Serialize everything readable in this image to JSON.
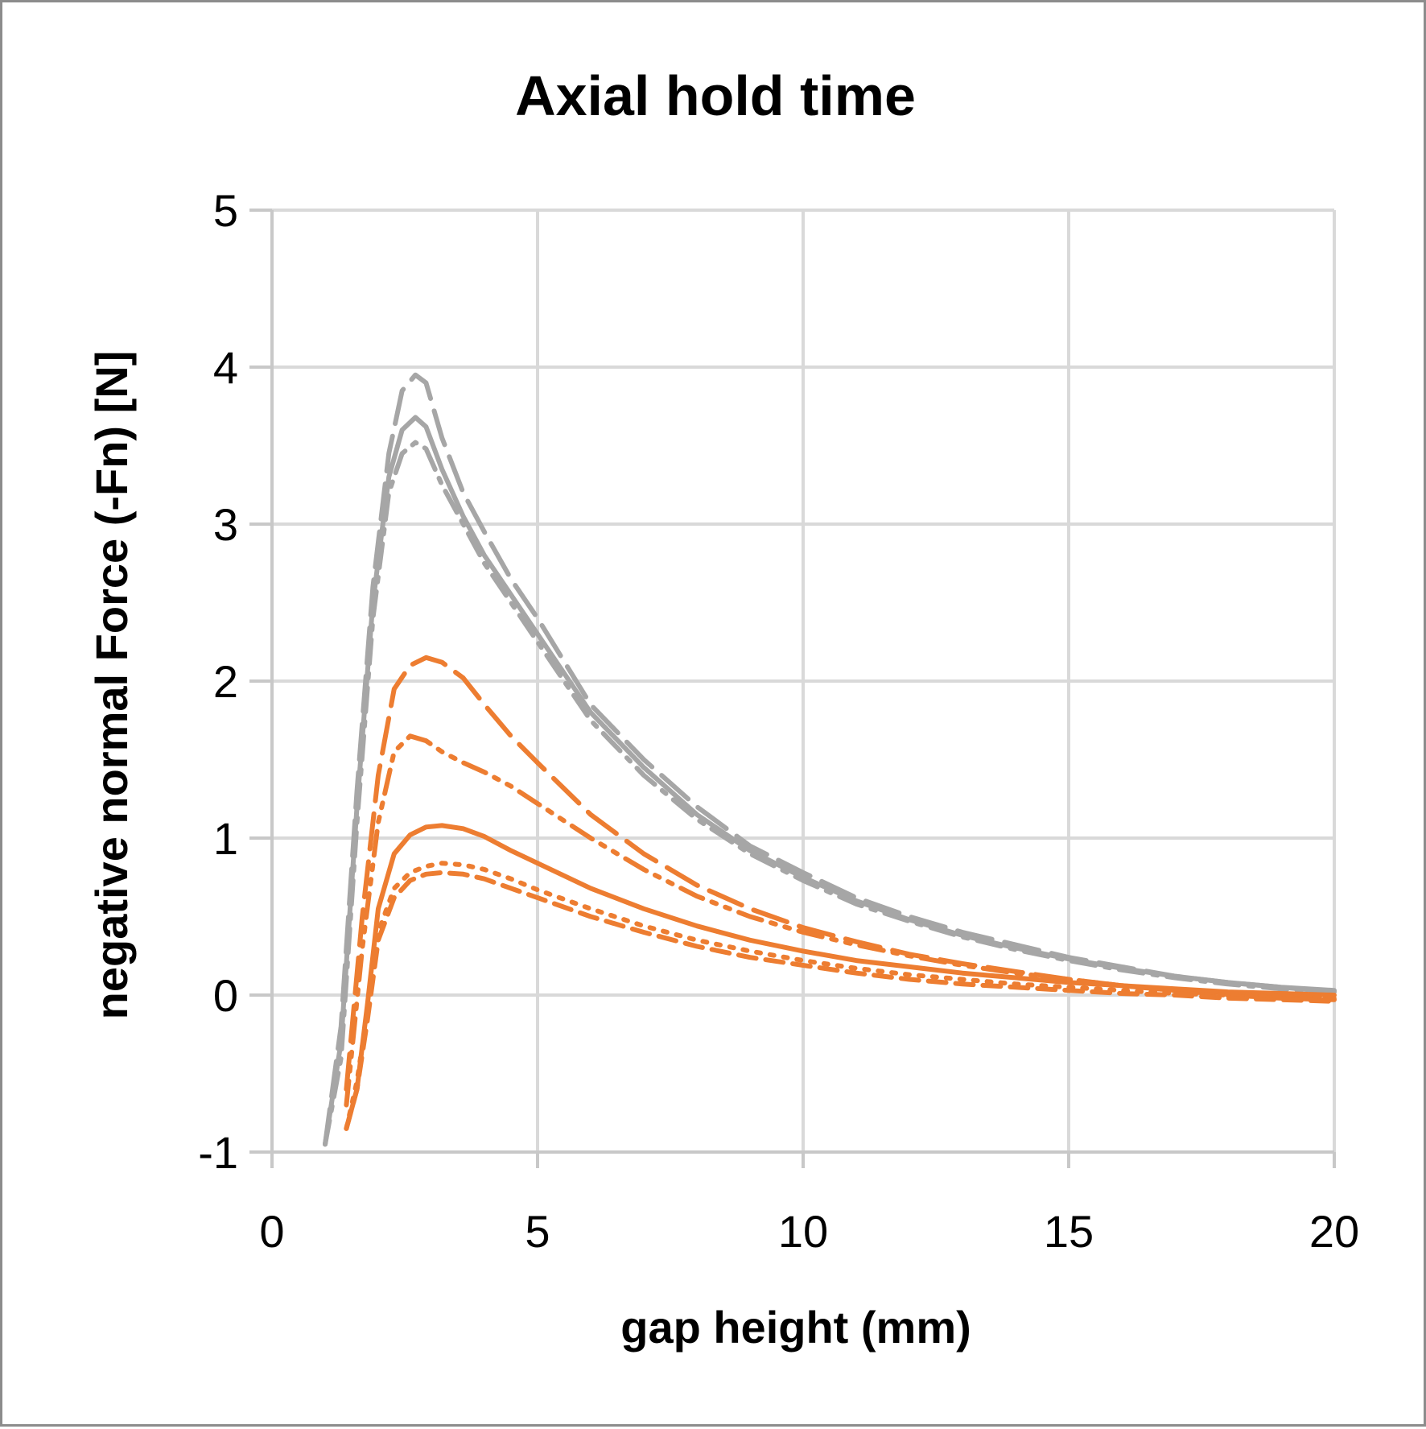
{
  "chart_data": {
    "type": "line",
    "title": "Axial hold time",
    "xlabel": "gap height (mm)",
    "ylabel": "negative normal Force (-Fn) [N]",
    "xlim": [
      0,
      20
    ],
    "ylim": [
      -1,
      5
    ],
    "xticks": [
      0,
      5,
      10,
      15,
      20
    ],
    "yticks": [
      -1,
      0,
      1,
      2,
      3,
      4,
      5
    ],
    "grid": true,
    "legend": "none",
    "colors": {
      "gray": "#a6a6a6",
      "orange": "#ed7d31"
    },
    "series": [
      {
        "color": "gray",
        "dash": "long-dash",
        "x": [
          1.0,
          1.3,
          1.6,
          1.9,
          2.2,
          2.45,
          2.7,
          2.9,
          3.2,
          3.6,
          4.0,
          4.5,
          5.0,
          6.0,
          7.0,
          8.0,
          9.0,
          10.0,
          11.0,
          12.0,
          13.0,
          14.0,
          15.0,
          16.0,
          17.0,
          18.0,
          19.0,
          20.0
        ],
        "y": [
          -0.95,
          -0.2,
          1.3,
          2.6,
          3.45,
          3.85,
          3.95,
          3.9,
          3.55,
          3.2,
          2.95,
          2.65,
          2.4,
          1.85,
          1.5,
          1.2,
          0.95,
          0.78,
          0.62,
          0.5,
          0.4,
          0.32,
          0.24,
          0.18,
          0.12,
          0.08,
          0.05,
          0.02
        ]
      },
      {
        "color": "gray",
        "dash": "solid",
        "x": [
          1.0,
          1.3,
          1.6,
          1.9,
          2.2,
          2.45,
          2.7,
          2.9,
          3.2,
          3.6,
          4.0,
          4.5,
          5.0,
          6.0,
          7.0,
          8.0,
          9.0,
          10.0,
          11.0,
          12.0,
          13.0,
          14.0,
          15.0,
          16.0,
          17.0,
          18.0,
          19.0,
          20.0
        ],
        "y": [
          -0.95,
          -0.3,
          1.2,
          2.5,
          3.3,
          3.6,
          3.68,
          3.62,
          3.35,
          3.05,
          2.8,
          2.55,
          2.3,
          1.8,
          1.45,
          1.15,
          0.92,
          0.75,
          0.6,
          0.48,
          0.38,
          0.3,
          0.23,
          0.17,
          0.12,
          0.08,
          0.05,
          0.03
        ]
      },
      {
        "color": "gray",
        "dash": "dash-dot",
        "x": [
          1.0,
          1.3,
          1.6,
          1.9,
          2.2,
          2.45,
          2.7,
          2.9,
          3.2,
          3.6,
          4.0,
          4.5,
          5.0,
          6.0,
          7.0,
          8.0,
          9.0,
          10.0,
          11.0,
          12.0,
          13.0,
          14.0,
          15.0,
          16.0,
          17.0,
          18.0,
          19.0,
          20.0
        ],
        "y": [
          -0.95,
          -0.4,
          1.1,
          2.4,
          3.2,
          3.45,
          3.52,
          3.48,
          3.25,
          3.0,
          2.75,
          2.5,
          2.25,
          1.75,
          1.4,
          1.12,
          0.9,
          0.73,
          0.58,
          0.47,
          0.37,
          0.29,
          0.22,
          0.16,
          0.11,
          0.07,
          0.04,
          0.02
        ]
      },
      {
        "color": "orange",
        "dash": "long-dash",
        "x": [
          1.4,
          1.7,
          2.0,
          2.3,
          2.6,
          2.9,
          3.2,
          3.6,
          4.0,
          4.5,
          5.0,
          6.0,
          7.0,
          8.0,
          9.0,
          10.0,
          11.0,
          12.0,
          13.0,
          14.0,
          15.0,
          16.0,
          17.0,
          18.0,
          19.0,
          20.0
        ],
        "y": [
          -0.6,
          0.5,
          1.4,
          1.95,
          2.1,
          2.15,
          2.12,
          2.02,
          1.85,
          1.65,
          1.48,
          1.15,
          0.9,
          0.7,
          0.55,
          0.43,
          0.34,
          0.26,
          0.2,
          0.15,
          0.1,
          0.06,
          0.03,
          0.0,
          -0.02,
          -0.03
        ]
      },
      {
        "color": "orange",
        "dash": "dash-dot-dot",
        "x": [
          1.4,
          1.7,
          2.0,
          2.3,
          2.6,
          2.9,
          3.2,
          3.6,
          4.0,
          4.5,
          5.0,
          6.0,
          7.0,
          8.0,
          9.0,
          10.0,
          11.0,
          12.0,
          13.0,
          14.0,
          15.0,
          16.0,
          17.0,
          18.0,
          19.0,
          20.0
        ],
        "y": [
          -0.7,
          0.3,
          1.1,
          1.55,
          1.65,
          1.62,
          1.55,
          1.48,
          1.42,
          1.33,
          1.22,
          1.0,
          0.8,
          0.63,
          0.5,
          0.4,
          0.32,
          0.25,
          0.19,
          0.14,
          0.1,
          0.06,
          0.03,
          0.01,
          -0.01,
          -0.02
        ]
      },
      {
        "color": "orange",
        "dash": "solid",
        "x": [
          1.4,
          1.6,
          1.8,
          2.0,
          2.3,
          2.6,
          2.9,
          3.2,
          3.6,
          4.0,
          4.5,
          5.0,
          6.0,
          7.0,
          8.0,
          9.0,
          10.0,
          11.0,
          12.0,
          13.0,
          14.0,
          15.0,
          16.0,
          17.0,
          18.0,
          19.0,
          20.0
        ],
        "y": [
          -0.85,
          -0.6,
          -0.05,
          0.55,
          0.9,
          1.02,
          1.07,
          1.08,
          1.06,
          1.01,
          0.92,
          0.84,
          0.68,
          0.55,
          0.44,
          0.35,
          0.28,
          0.22,
          0.18,
          0.14,
          0.11,
          0.08,
          0.06,
          0.04,
          0.02,
          0.01,
          0.0
        ]
      },
      {
        "color": "orange",
        "dash": "dot",
        "x": [
          1.4,
          1.6,
          1.8,
          2.0,
          2.3,
          2.6,
          2.9,
          3.2,
          3.6,
          4.0,
          4.5,
          5.0,
          6.0,
          7.0,
          8.0,
          9.0,
          10.0,
          11.0,
          12.0,
          13.0,
          14.0,
          15.0,
          16.0,
          17.0,
          18.0,
          19.0,
          20.0
        ],
        "y": [
          -0.85,
          -0.55,
          -0.1,
          0.4,
          0.68,
          0.78,
          0.82,
          0.84,
          0.83,
          0.8,
          0.74,
          0.67,
          0.55,
          0.44,
          0.35,
          0.28,
          0.22,
          0.17,
          0.13,
          0.1,
          0.07,
          0.05,
          0.03,
          0.01,
          0.0,
          -0.01,
          -0.02
        ]
      },
      {
        "color": "orange",
        "dash": "dash",
        "x": [
          1.4,
          1.6,
          1.8,
          2.0,
          2.3,
          2.6,
          2.9,
          3.2,
          3.6,
          4.0,
          4.5,
          5.0,
          6.0,
          7.0,
          8.0,
          9.0,
          10.0,
          11.0,
          12.0,
          13.0,
          14.0,
          15.0,
          16.0,
          17.0,
          18.0,
          19.0,
          20.0
        ],
        "y": [
          -0.85,
          -0.6,
          -0.15,
          0.35,
          0.62,
          0.73,
          0.77,
          0.78,
          0.77,
          0.74,
          0.68,
          0.62,
          0.5,
          0.4,
          0.31,
          0.24,
          0.19,
          0.14,
          0.1,
          0.07,
          0.05,
          0.03,
          0.01,
          0.0,
          -0.02,
          -0.03,
          -0.04
        ]
      }
    ]
  }
}
